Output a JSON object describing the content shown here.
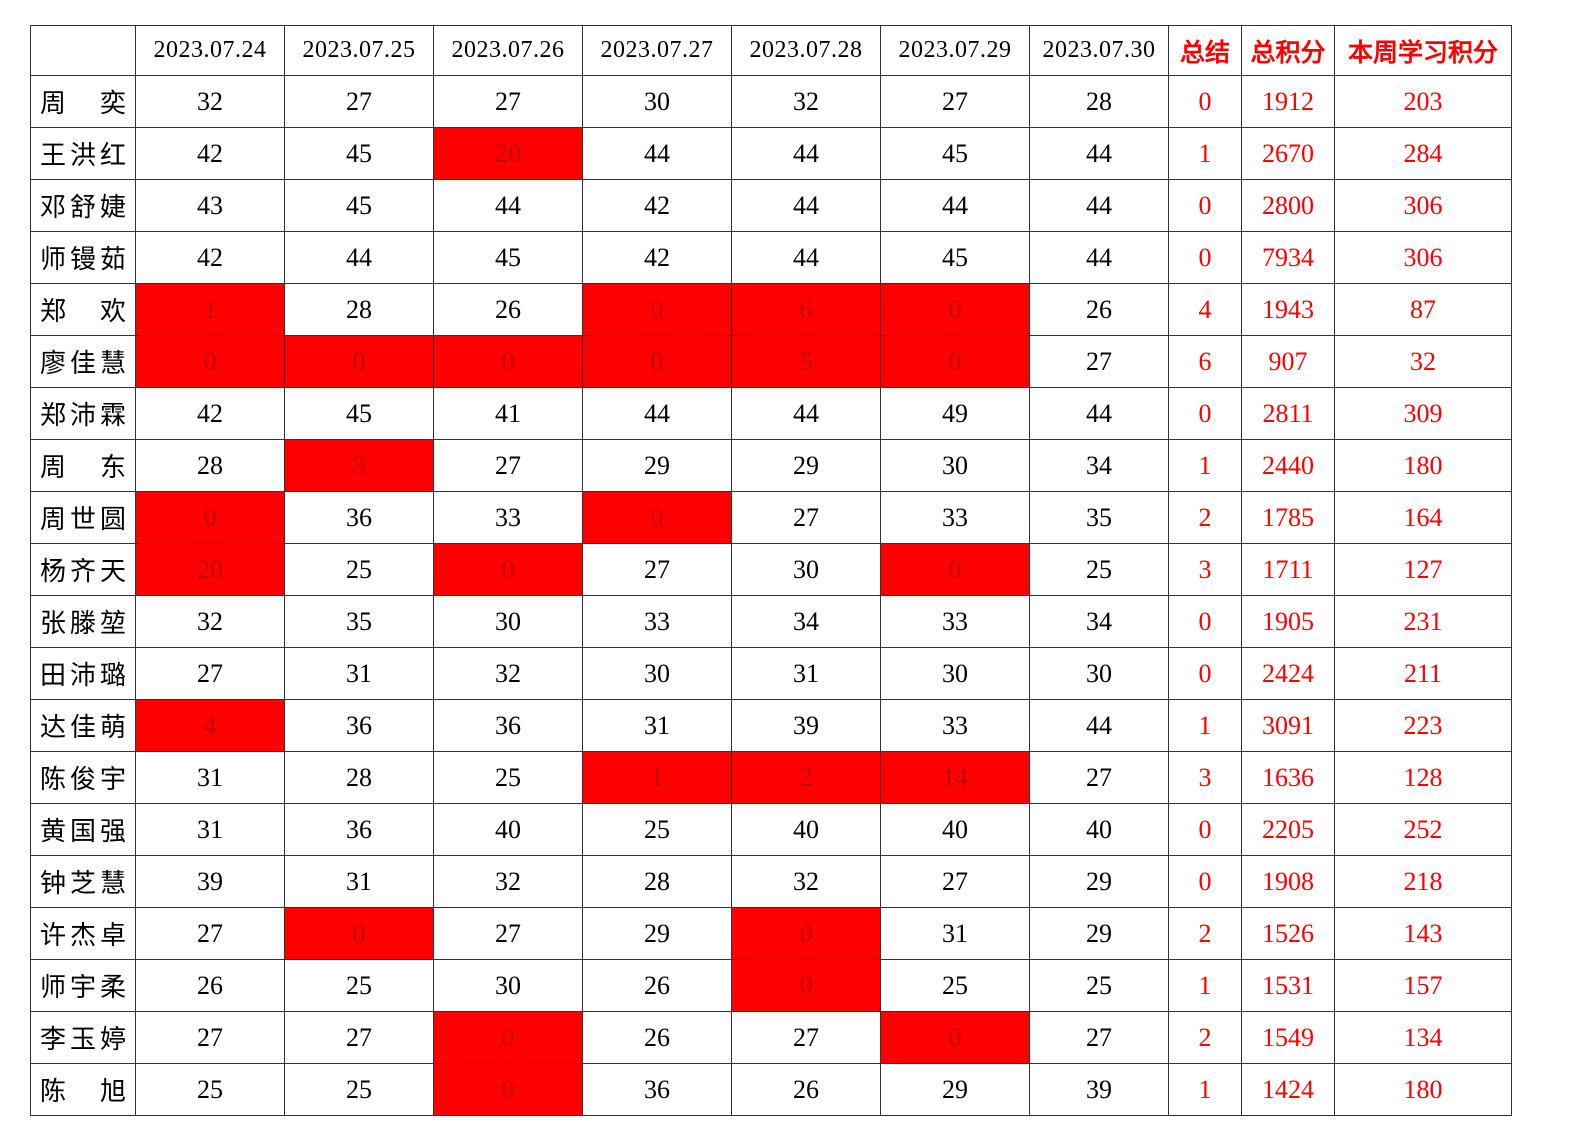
{
  "chart_data": {
    "type": "table",
    "title": "",
    "columns": [
      "",
      "2023.07.24",
      "2023.07.25",
      "2023.07.26",
      "2023.07.27",
      "2023.07.28",
      "2023.07.29",
      "2023.07.30",
      "总结",
      "总积分",
      "本周学习积分"
    ],
    "rows": [
      {
        "name": "周奕",
        "daily": [
          32,
          27,
          27,
          30,
          32,
          27,
          28
        ],
        "red_days": [],
        "summary": 0,
        "total": 1912,
        "weekly": 203
      },
      {
        "name": "王洪红",
        "daily": [
          42,
          45,
          20,
          44,
          44,
          45,
          44
        ],
        "red_days": [
          2
        ],
        "summary": 1,
        "total": 2670,
        "weekly": 284
      },
      {
        "name": "邓舒婕",
        "daily": [
          43,
          45,
          44,
          42,
          44,
          44,
          44
        ],
        "red_days": [],
        "summary": 0,
        "total": 2800,
        "weekly": 306
      },
      {
        "name": "师镘茹",
        "daily": [
          42,
          44,
          45,
          42,
          44,
          45,
          44
        ],
        "red_days": [],
        "summary": 0,
        "total": 7934,
        "weekly": 306
      },
      {
        "name": "郑欢",
        "daily": [
          1,
          28,
          26,
          0,
          6,
          0,
          26
        ],
        "red_days": [
          0,
          3,
          4,
          5
        ],
        "summary": 4,
        "total": 1943,
        "weekly": 87
      },
      {
        "name": "廖佳慧",
        "daily": [
          0,
          0,
          0,
          0,
          5,
          0,
          27
        ],
        "red_days": [
          0,
          1,
          2,
          3,
          4,
          5
        ],
        "summary": 6,
        "total": 907,
        "weekly": 32
      },
      {
        "name": "郑沛霖",
        "daily": [
          42,
          45,
          41,
          44,
          44,
          49,
          44
        ],
        "red_days": [],
        "summary": 0,
        "total": 2811,
        "weekly": 309
      },
      {
        "name": "周东",
        "daily": [
          28,
          3,
          27,
          29,
          29,
          30,
          34
        ],
        "red_days": [
          1
        ],
        "summary": 1,
        "total": 2440,
        "weekly": 180
      },
      {
        "name": "周世圆",
        "daily": [
          0,
          36,
          33,
          0,
          27,
          33,
          35
        ],
        "red_days": [
          0,
          3
        ],
        "summary": 2,
        "total": 1785,
        "weekly": 164
      },
      {
        "name": "杨齐天",
        "daily": [
          20,
          25,
          0,
          27,
          30,
          0,
          25
        ],
        "red_days": [
          0,
          2,
          5
        ],
        "summary": 3,
        "total": 1711,
        "weekly": 127
      },
      {
        "name": "张滕堃",
        "daily": [
          32,
          35,
          30,
          33,
          34,
          33,
          34
        ],
        "red_days": [],
        "summary": 0,
        "total": 1905,
        "weekly": 231
      },
      {
        "name": "田沛璐",
        "daily": [
          27,
          31,
          32,
          30,
          31,
          30,
          30
        ],
        "red_days": [],
        "summary": 0,
        "total": 2424,
        "weekly": 211
      },
      {
        "name": "达佳萌",
        "daily": [
          4,
          36,
          36,
          31,
          39,
          33,
          44
        ],
        "red_days": [
          0
        ],
        "summary": 1,
        "total": 3091,
        "weekly": 223
      },
      {
        "name": "陈俊宇",
        "daily": [
          31,
          28,
          25,
          1,
          2,
          14,
          27
        ],
        "red_days": [
          3,
          4,
          5
        ],
        "summary": 3,
        "total": 1636,
        "weekly": 128
      },
      {
        "name": "黄国强",
        "daily": [
          31,
          36,
          40,
          25,
          40,
          40,
          40
        ],
        "red_days": [],
        "summary": 0,
        "total": 2205,
        "weekly": 252
      },
      {
        "name": "钟芝慧",
        "daily": [
          39,
          31,
          32,
          28,
          32,
          27,
          29
        ],
        "red_days": [],
        "summary": 0,
        "total": 1908,
        "weekly": 218
      },
      {
        "name": "许杰卓",
        "daily": [
          27,
          0,
          27,
          29,
          0,
          31,
          29
        ],
        "red_days": [
          1,
          4
        ],
        "summary": 2,
        "total": 1526,
        "weekly": 143
      },
      {
        "name": "师宇柔",
        "daily": [
          26,
          25,
          30,
          26,
          0,
          25,
          25
        ],
        "red_days": [
          4
        ],
        "summary": 1,
        "total": 1531,
        "weekly": 157
      },
      {
        "name": "李玉婷",
        "daily": [
          27,
          27,
          0,
          26,
          27,
          0,
          27
        ],
        "red_days": [
          2,
          5
        ],
        "summary": 2,
        "total": 1549,
        "weekly": 134
      },
      {
        "name": "陈旭",
        "daily": [
          25,
          25,
          0,
          36,
          26,
          29,
          39
        ],
        "red_days": [
          2
        ],
        "summary": 1,
        "total": 1424,
        "weekly": 180
      }
    ],
    "layout": {
      "header_red_columns": [
        "总结",
        "总积分",
        "本周学习积分"
      ],
      "highlight_meaning": "red background marks flagged/low daily scores"
    },
    "colors": {
      "highlight_bg": "#ff0000",
      "highlight_text": "#c00000",
      "accent_text": "#ff0000",
      "grid_border": "#333333",
      "normal_text": "#000000"
    }
  }
}
